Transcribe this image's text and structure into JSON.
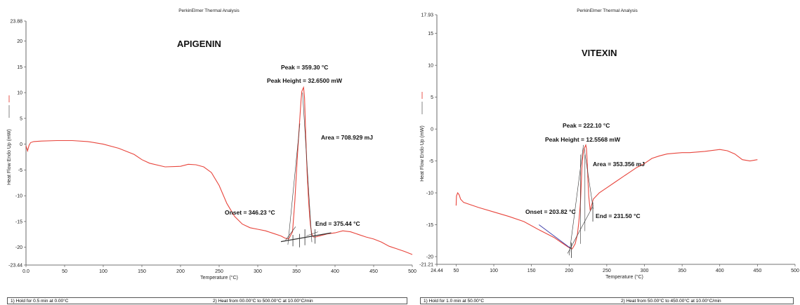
{
  "chart_data": [
    {
      "type": "line",
      "header": "PerkinElmer Thermal Analysis",
      "title": "APIGENIN",
      "xlabel": "Temperature (°C)",
      "ylabel": "Heat Flow Endo Up (mW)",
      "xlim": [
        0,
        500
      ],
      "ylim": [
        -23.44,
        23.88
      ],
      "x_ticks": [
        "0.0",
        "50",
        "100",
        "150",
        "200",
        "250",
        "300",
        "350",
        "400",
        "450",
        "500"
      ],
      "y_ticks": [
        "23.88",
        "20",
        "15",
        "10",
        "5",
        "0",
        "-5",
        "-10",
        "-15",
        "-20",
        "-23.44"
      ],
      "series": [
        {
          "color": "#e8453c",
          "x": [
            0,
            2,
            4,
            6,
            10,
            20,
            40,
            60,
            80,
            100,
            120,
            140,
            150,
            160,
            180,
            200,
            210,
            220,
            230,
            240,
            250,
            260,
            270,
            280,
            290,
            300,
            310,
            320,
            330,
            335,
            340,
            345,
            348,
            351,
            354,
            356,
            357,
            358,
            359.3,
            360.5,
            362,
            364,
            366,
            368,
            370,
            372,
            375,
            380,
            390,
            400,
            410,
            420,
            430,
            440,
            450,
            460,
            470,
            480,
            490,
            500
          ],
          "y": [
            -0.3,
            -1.3,
            -0.2,
            0.3,
            0.5,
            0.6,
            0.7,
            0.7,
            0.5,
            0.0,
            -0.8,
            -2.0,
            -3.0,
            -3.7,
            -4.4,
            -4.3,
            -3.9,
            -4.0,
            -4.4,
            -5.5,
            -8.0,
            -11.5,
            -14.0,
            -15.5,
            -16.2,
            -16.5,
            -16.8,
            -17.3,
            -17.8,
            -18.2,
            -18.4,
            -17.0,
            -11.0,
            -3.0,
            4.0,
            8.5,
            10.2,
            10.6,
            11.0,
            9.0,
            2.0,
            -6.0,
            -11.5,
            -15.5,
            -17.5,
            -18.0,
            -18.0,
            -17.8,
            -17.4,
            -17.2,
            -16.8,
            -17.0,
            -17.5,
            -18.0,
            -18.4,
            -19.0,
            -19.8,
            -20.3,
            -20.8,
            -21.4
          ]
        }
      ],
      "annotations": {
        "peak": "Peak = 359.30 °C",
        "peak_height": "Peak Height = 32.6500 mW",
        "area": "Area = 708.929 mJ",
        "onset": "Onset = 346.23 °C",
        "end": "End = 375.44 °C"
      },
      "grid": false,
      "footer": [
        "1)  Hold for 0.5 min at 0.00°C",
        "2)    Heat from 00.00°C to 500.00°C at 10.00°C/min"
      ]
    },
    {
      "type": "line",
      "header": "PerkinElmer Thermal Analysis",
      "title": "VITEXIN",
      "xlabel": "Temperature (°C)",
      "ylabel": "Heat Flow Endo Up (mW)",
      "xlim": [
        24.44,
        500
      ],
      "ylim": [
        -21.21,
        17.93
      ],
      "x_ticks": [
        "24.44",
        "50",
        "100",
        "150",
        "200",
        "250",
        "300",
        "350",
        "400",
        "450",
        "500"
      ],
      "y_ticks": [
        "17.93",
        "15",
        "10",
        "5",
        "0",
        "-5",
        "-10",
        "-15",
        "-20",
        "-21.21"
      ],
      "series": [
        {
          "color": "#e8453c",
          "x": [
            50,
            50.5,
            52,
            54,
            56,
            60,
            80,
            100,
            120,
            140,
            160,
            180,
            190,
            200,
            204,
            208,
            211,
            213,
            215,
            216,
            217,
            218,
            219,
            220,
            221,
            222.1,
            223,
            224,
            225,
            226,
            228,
            232,
            240,
            250,
            260,
            270,
            280,
            290,
            300,
            310,
            320,
            330,
            340,
            350,
            360,
            380,
            400,
            410,
            420,
            430,
            440,
            450
          ],
          "y": [
            -12.0,
            -10.5,
            -10.0,
            -10.3,
            -11.0,
            -11.5,
            -12.3,
            -13.0,
            -13.7,
            -14.5,
            -15.8,
            -17.0,
            -17.8,
            -18.6,
            -18.8,
            -18.0,
            -16.5,
            -14.5,
            -11.5,
            -9.0,
            -6.0,
            -4.5,
            -3.5,
            -3.0,
            -2.8,
            -2.5,
            -3.0,
            -5.0,
            -8.0,
            -10.5,
            -12.8,
            -11.0,
            -10.0,
            -9.2,
            -8.4,
            -7.6,
            -6.8,
            -6.0,
            -5.4,
            -4.6,
            -4.2,
            -3.9,
            -3.8,
            -3.7,
            -3.7,
            -3.5,
            -3.2,
            -3.4,
            -3.9,
            -4.8,
            -5.0,
            -4.8
          ]
        }
      ],
      "annotations": {
        "peak": "Peak = 222.10 °C",
        "peak_height": "Peak Height = 12.5568 mW",
        "area": "Area = 353.356 mJ",
        "onset": "Onset = 203.82 °C",
        "end": "End = 231.50 °C"
      },
      "grid": false,
      "footer": [
        "1)  Hold for 1.0 min at 50.00°C",
        "2)    Heat from 50.00°C to 450.00°C at 10.00°C/min"
      ]
    }
  ]
}
